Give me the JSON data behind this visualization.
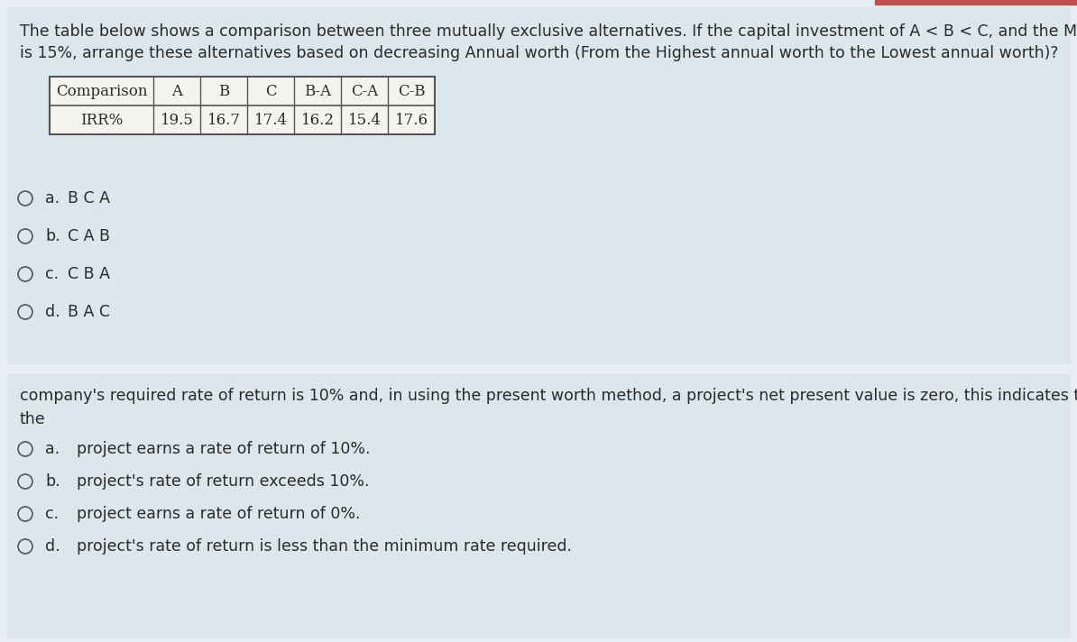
{
  "bg_color": "#e8eef3",
  "section1_bg": "#dce6ed",
  "section2_bg": "#dce6ed",
  "table_bg": "#f5f5f0",
  "table_border": "#555555",
  "text_color": "#2a2a2a",
  "top_bar_color": "#c0504d",
  "top_bar_right_box": "#c0504d",
  "question1_line1": "The table below shows a comparison between three mutually exclusive alternatives. If the capital investment of A < B < C, and the MARR",
  "question1_line2": "is 15%, arrange these alternatives based on decreasing Annual worth (From the Highest annual worth to the Lowest annual worth)?",
  "table_headers": [
    "Comparison",
    "A",
    "B",
    "C",
    "B-A",
    "C-A",
    "C-B"
  ],
  "table_row_label": "IRR%",
  "table_row_values": [
    "19.5",
    "16.7",
    "17.4",
    "16.2",
    "15.4",
    "17.6"
  ],
  "q1_options": [
    [
      "a.",
      "B C A"
    ],
    [
      "b.",
      "C A B"
    ],
    [
      "c.",
      "C B A"
    ],
    [
      "d.",
      "B A C"
    ]
  ],
  "question2_line1": "company's required rate of return is 10% and, in using the present worth method, a project's net present value is zero, this indicates that",
  "question2_line2": "the",
  "q2_options": [
    [
      "a.",
      "project earns a rate of return of 10%."
    ],
    [
      "b.",
      "project's rate of return exceeds 10%."
    ],
    [
      "c.",
      "project earns a rate of return of 0%."
    ],
    [
      "d.",
      "project's rate of return is less than the minimum rate required."
    ]
  ],
  "font_size_question": 12.5,
  "font_size_options": 12.5,
  "font_size_table_header": 12.0,
  "font_size_table_data": 12.0
}
